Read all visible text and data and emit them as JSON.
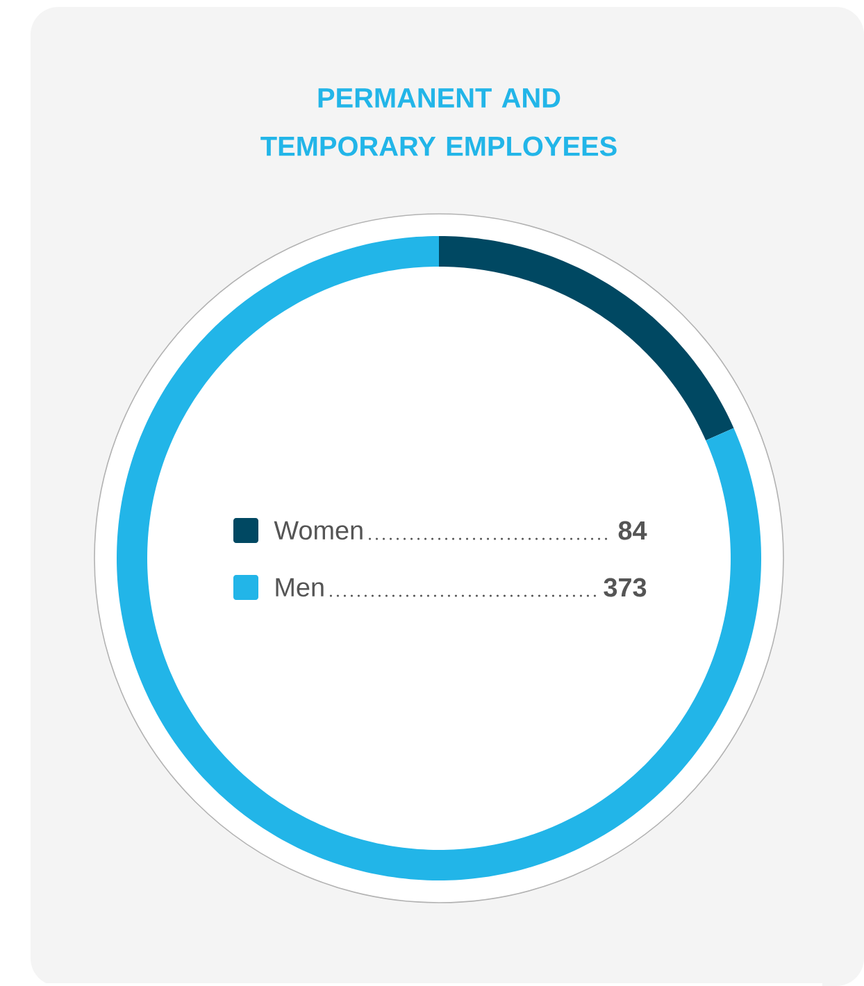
{
  "chart_data": {
    "type": "donut",
    "title": "PERMANENT AND TEMPORARY EMPLOYEES",
    "categories": [
      "Women",
      "Men"
    ],
    "values": [
      84,
      373
    ],
    "colors": [
      "#004862",
      "#22b5e8"
    ],
    "legend": "center",
    "data_labels": true
  }
}
